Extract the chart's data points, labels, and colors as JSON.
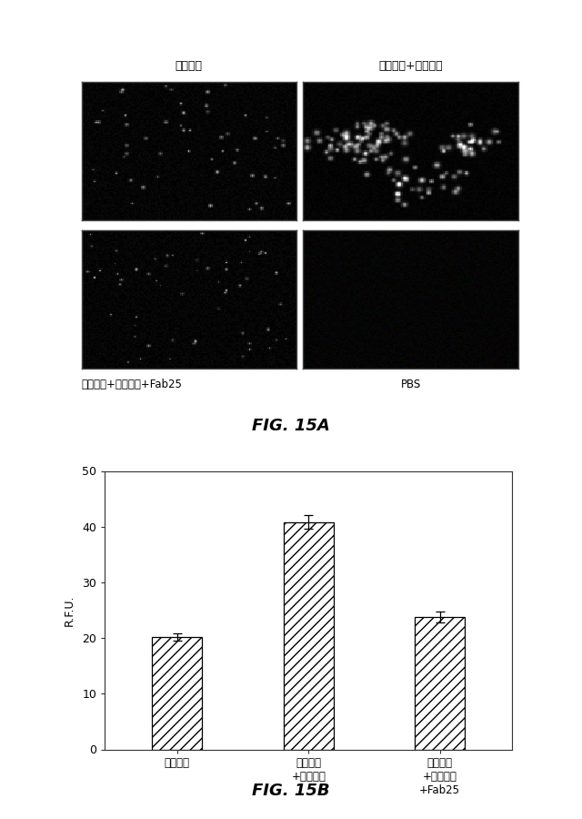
{
  "fig_width": 6.4,
  "fig_height": 9.0,
  "bg_color": "#ffffff",
  "panel_a": {
    "title_top_left": "ラミニン",
    "title_top_right": "ラミニン+ヘプシン",
    "label_bottom_left": "ラミニン+ヘプシン+Fab25",
    "label_bottom_right": "PBS",
    "caption": "FIG. 15A"
  },
  "panel_b": {
    "categories": [
      "ラミニン",
      "ラミニン\n+ヘプシン",
      "ラミニン\n+ヘプシン\n+Fab25"
    ],
    "values": [
      20.2,
      40.8,
      23.8
    ],
    "errors": [
      0.7,
      1.2,
      1.0
    ],
    "ylabel": "R.F.U.",
    "ylim": [
      0,
      50
    ],
    "yticks": [
      0,
      10,
      20,
      30,
      40,
      50
    ],
    "bar_color": "#ffffff",
    "bar_edgecolor": "#000000",
    "hatch": "///",
    "caption": "FIG. 15B"
  }
}
